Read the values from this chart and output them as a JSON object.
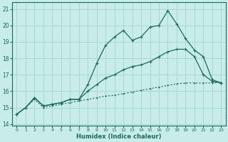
{
  "xlabel": "Humidex (Indice chaleur)",
  "bg_color": "#c8ece8",
  "line_color": "#1a6b5a",
  "grid_color": "#a8d8d0",
  "xlim": [
    -0.5,
    23.5
  ],
  "ylim": [
    13.9,
    21.4
  ],
  "yticks": [
    14,
    15,
    16,
    17,
    18,
    19,
    20,
    21
  ],
  "xticks": [
    0,
    1,
    2,
    3,
    4,
    5,
    6,
    7,
    8,
    9,
    10,
    11,
    12,
    13,
    14,
    15,
    16,
    17,
    18,
    19,
    20,
    21,
    22,
    23
  ],
  "line1_x": [
    0,
    1,
    2,
    3,
    4,
    5,
    6,
    7,
    8,
    9,
    10,
    11,
    12,
    13,
    14,
    15,
    16,
    17,
    18,
    19,
    20,
    21,
    22,
    23
  ],
  "line1_y": [
    14.6,
    15.0,
    15.6,
    15.1,
    15.2,
    15.3,
    15.5,
    15.5,
    16.4,
    17.7,
    18.8,
    19.3,
    19.7,
    19.1,
    19.3,
    19.9,
    20.0,
    20.9,
    20.1,
    19.2,
    18.5,
    18.1,
    16.7,
    16.5
  ],
  "line2_x": [
    0,
    1,
    2,
    3,
    4,
    5,
    6,
    7,
    8,
    9,
    10,
    11,
    12,
    13,
    14,
    15,
    16,
    17,
    18,
    19,
    20,
    21,
    22,
    23
  ],
  "line2_y": [
    14.6,
    15.0,
    15.6,
    15.1,
    15.2,
    15.3,
    15.5,
    15.5,
    16.0,
    16.4,
    16.8,
    17.0,
    17.3,
    17.5,
    17.6,
    17.8,
    18.1,
    18.4,
    18.55,
    18.55,
    18.1,
    17.0,
    16.6,
    16.5
  ],
  "line3_x": [
    0,
    1,
    2,
    3,
    4,
    5,
    6,
    7,
    8,
    9,
    10,
    11,
    12,
    13,
    14,
    15,
    16,
    17,
    18,
    19,
    20,
    21,
    22,
    23
  ],
  "line3_y": [
    14.6,
    15.0,
    15.5,
    15.0,
    15.1,
    15.2,
    15.3,
    15.4,
    15.5,
    15.6,
    15.7,
    15.75,
    15.85,
    15.95,
    16.05,
    16.15,
    16.25,
    16.35,
    16.45,
    16.5,
    16.5,
    16.5,
    16.5,
    16.55
  ]
}
